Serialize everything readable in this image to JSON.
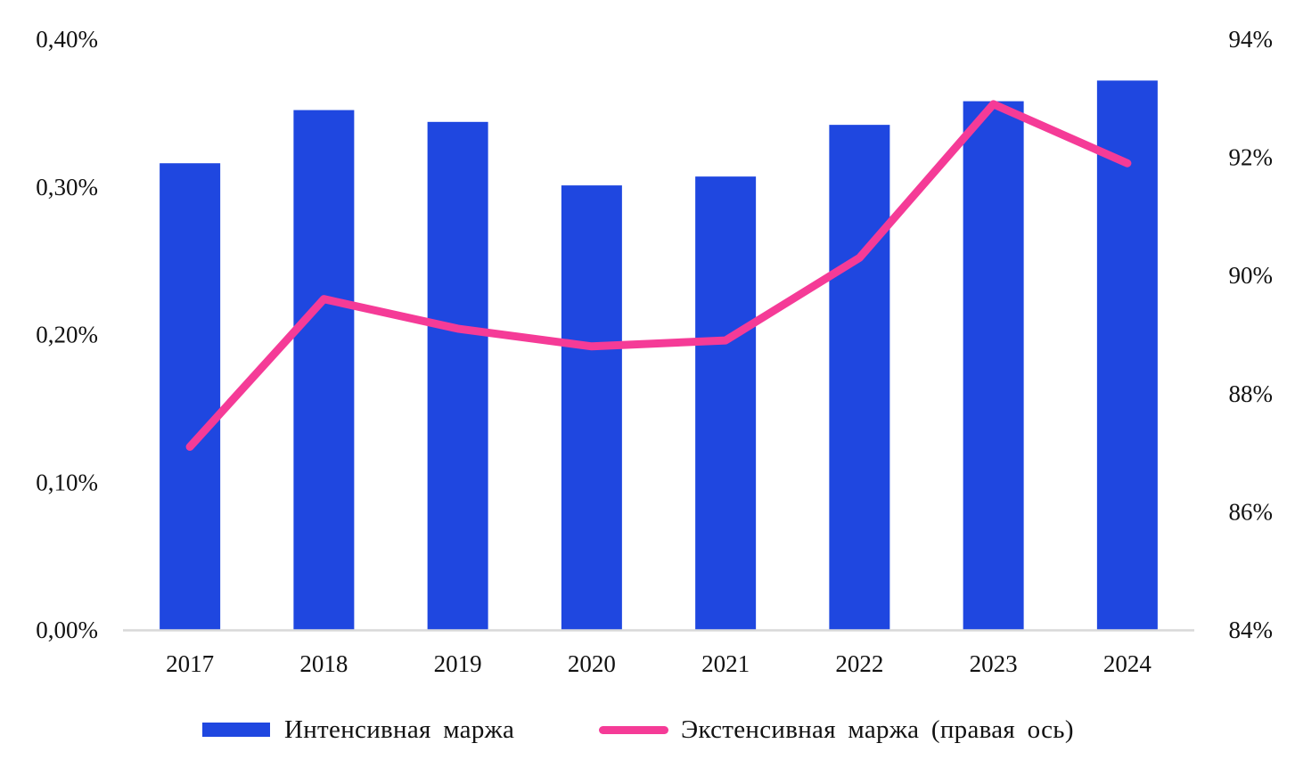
{
  "chart_data": {
    "type": "bar+line",
    "title": "",
    "categories": [
      "2017",
      "2018",
      "2019",
      "2020",
      "2021",
      "2022",
      "2023",
      "2024"
    ],
    "series": [
      {
        "name": "Интенсивная маржа",
        "type": "bar",
        "axis": "left",
        "color": "#1f47e0",
        "values": [
          0.316,
          0.352,
          0.344,
          0.301,
          0.307,
          0.342,
          0.358,
          0.372
        ]
      },
      {
        "name": "Экстенсивная маржа (правая ось)",
        "type": "line",
        "axis": "right",
        "color": "#f53b97",
        "values": [
          87.1,
          89.6,
          89.1,
          88.8,
          88.9,
          90.3,
          92.9,
          91.9
        ]
      }
    ],
    "left_axis": {
      "unit": "%",
      "ylim": [
        0,
        0.4
      ],
      "ticks": [
        0.0,
        0.1,
        0.2,
        0.3,
        0.4
      ],
      "tick_labels": [
        "0,00%",
        "0,10%",
        "0,20%",
        "0,30%",
        "0,40%"
      ]
    },
    "right_axis": {
      "unit": "%",
      "ylim": [
        84,
        94
      ],
      "ticks": [
        84,
        86,
        88,
        90,
        92,
        94
      ],
      "tick_labels": [
        "84%",
        "86%",
        "88%",
        "90%",
        "92%",
        "94%"
      ]
    },
    "xlabel": "",
    "ylabel": "",
    "grid": false,
    "legend_position": "bottom"
  },
  "legend": {
    "items": [
      {
        "label": "Интенсивная маржа",
        "swatch": "bar",
        "color": "#1f47e0"
      },
      {
        "label": "Экстенсивная маржа (правая ось)",
        "swatch": "line",
        "color": "#f53b97"
      }
    ]
  }
}
